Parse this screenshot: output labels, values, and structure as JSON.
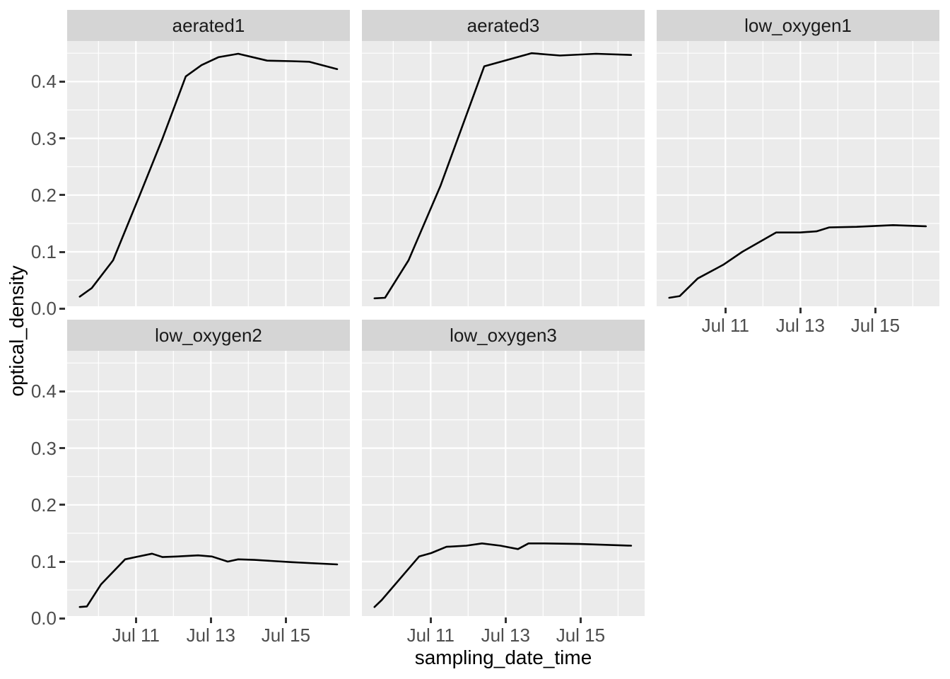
{
  "chart_data": {
    "type": "line",
    "title": "",
    "xlabel": "sampling_date_time",
    "ylabel": "optical_density",
    "x_axis_note": "x values are days of July; tick labels are dates",
    "x_domain": [
      9.164,
      16.71
    ],
    "y_domain": [
      0.004,
      0.4715
    ],
    "x_major_ticks": [
      {
        "value": 11,
        "label": "Jul 11"
      },
      {
        "value": 13,
        "label": "Jul 13"
      },
      {
        "value": 15,
        "label": "Jul 15"
      }
    ],
    "x_minor_ticks": [
      10,
      12,
      14,
      16
    ],
    "y_major_ticks": [
      {
        "value": 0.0,
        "label": "0.0"
      },
      {
        "value": 0.1,
        "label": "0.1"
      },
      {
        "value": 0.2,
        "label": "0.2"
      },
      {
        "value": 0.3,
        "label": "0.3"
      },
      {
        "value": 0.4,
        "label": "0.4"
      }
    ],
    "y_minor_ticks": [
      0.05,
      0.15,
      0.25,
      0.35,
      0.45
    ],
    "grid": true,
    "legend_position": "none",
    "facets": [
      {
        "label": "aerated1",
        "x": [
          9.5,
          9.82,
          10.39,
          11.09,
          11.71,
          12.33,
          12.75,
          13.2,
          13.73,
          14.5,
          15.16,
          15.62,
          16.37
        ],
        "y": [
          0.021,
          0.036,
          0.085,
          0.198,
          0.3,
          0.409,
          0.429,
          0.443,
          0.449,
          0.437,
          0.436,
          0.435,
          0.422
        ]
      },
      {
        "label": "aerated3",
        "x": [
          9.5,
          9.78,
          10.41,
          11.26,
          12.43,
          13.69,
          14.45,
          15.41,
          16.35
        ],
        "y": [
          0.018,
          0.019,
          0.085,
          0.216,
          0.427,
          0.45,
          0.446,
          0.449,
          0.447
        ]
      },
      {
        "label": "low_oxygen1",
        "x": [
          9.5,
          9.78,
          10.26,
          10.94,
          11.45,
          12.35,
          12.99,
          13.43,
          13.77,
          14.5,
          15.47,
          16.35
        ],
        "y": [
          0.019,
          0.022,
          0.053,
          0.077,
          0.1,
          0.134,
          0.134,
          0.136,
          0.143,
          0.144,
          0.147,
          0.145
        ]
      },
      {
        "label": "low_oxygen2",
        "x": [
          9.5,
          9.69,
          10.07,
          10.71,
          10.99,
          11.43,
          11.71,
          12.09,
          12.66,
          13.03,
          13.45,
          13.73,
          14.16,
          15.16,
          16.37
        ],
        "y": [
          0.02,
          0.021,
          0.06,
          0.104,
          0.108,
          0.114,
          0.108,
          0.109,
          0.111,
          0.109,
          0.1,
          0.104,
          0.103,
          0.099,
          0.095
        ]
      },
      {
        "label": "low_oxygen3",
        "x": [
          9.5,
          9.69,
          10.69,
          11.01,
          11.42,
          11.95,
          12.37,
          12.86,
          13.33,
          13.61,
          14.03,
          14.97,
          16.35
        ],
        "y": [
          0.02,
          0.032,
          0.109,
          0.115,
          0.126,
          0.128,
          0.132,
          0.128,
          0.122,
          0.132,
          0.132,
          0.131,
          0.128
        ]
      }
    ]
  },
  "style": {
    "background": "#ffffff",
    "panel_bg": "#ebebeb",
    "strip_bg": "#d5d5d5",
    "grid_color": "#ffffff",
    "line_color": "#000000",
    "tick_mark_color": "#333333",
    "tick_label_color": "#4d4d4d",
    "title_color": "#000000",
    "strip_text_color": "#1a1a1a"
  }
}
